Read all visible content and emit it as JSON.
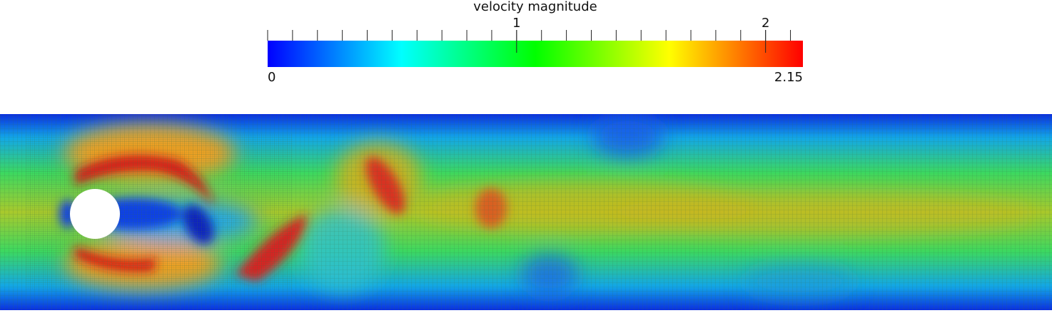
{
  "colorbar": {
    "title": "velocity magnitude",
    "colors": [
      "#0000ff",
      "#00ffff",
      "#00ff00",
      "#ffff00",
      "#ff0000"
    ],
    "lim": [
      0,
      2.15
    ],
    "ticks": [
      1,
      2
    ],
    "minor_ticks": [
      0,
      0.1,
      0.2,
      0.3,
      0.4,
      0.5,
      0.6,
      0.7,
      0.8,
      0.9,
      1.0,
      1.1,
      1.2,
      1.3,
      1.4,
      1.5,
      1.6,
      1.7,
      1.8,
      1.9,
      2.0,
      2.1
    ]
  }
}
